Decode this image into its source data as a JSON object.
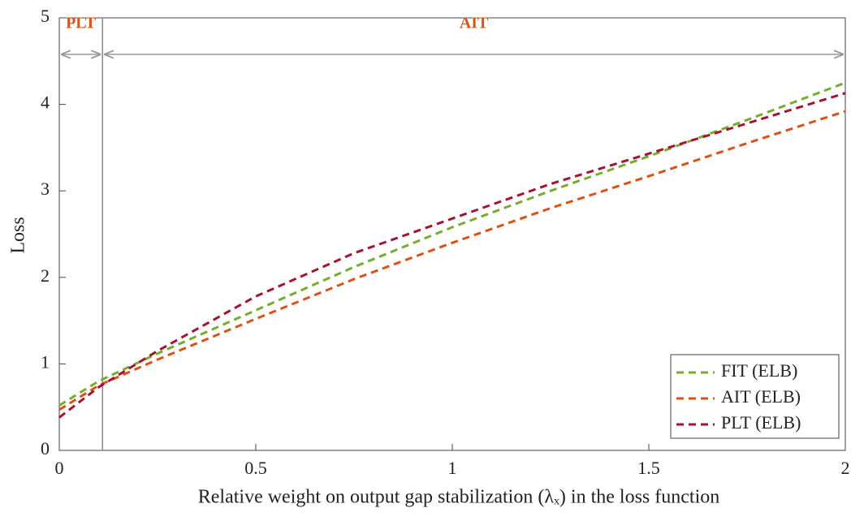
{
  "chart_data": {
    "type": "line",
    "x_label": "Relative weight on output gap stabilization (λₓ) in the loss function",
    "y_label": "Loss",
    "x": [
      0,
      0.1,
      0.25,
      0.5,
      0.75,
      1,
      1.25,
      1.5,
      1.75,
      2
    ],
    "series": [
      {
        "name": "FIT (ELB)",
        "color": "#77ac30",
        "values": [
          0.52,
          0.8,
          1.12,
          1.62,
          2.12,
          2.58,
          3.0,
          3.4,
          3.82,
          4.25
        ]
      },
      {
        "name": "AIT (ELB)",
        "color": "#d95319",
        "values": [
          0.47,
          0.75,
          1.05,
          1.52,
          1.98,
          2.4,
          2.8,
          3.17,
          3.55,
          3.92
        ]
      },
      {
        "name": "PLT (ELB)",
        "color": "#a2142f",
        "values": [
          0.38,
          0.73,
          1.15,
          1.78,
          2.28,
          2.68,
          3.08,
          3.43,
          3.78,
          4.13
        ]
      }
    ],
    "regime_boundary": 0.11,
    "regimes": [
      "PLT",
      "AIT"
    ],
    "regime_color": "#d95319",
    "xlim": [
      0,
      2
    ],
    "xticks": [
      0,
      0.5,
      1,
      1.5,
      2
    ],
    "ylim": [
      0,
      5
    ],
    "yticks": [
      0,
      1,
      2,
      3,
      4,
      5
    ],
    "legend": "lower right",
    "grid": false
  }
}
